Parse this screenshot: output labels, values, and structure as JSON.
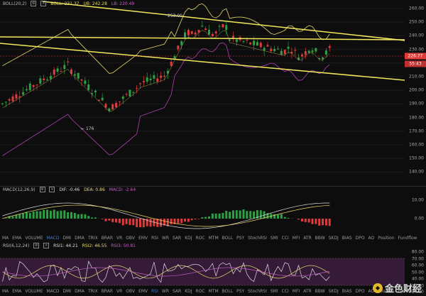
{
  "main": {
    "legend": {
      "boll_name": "BOLL(20,2)",
      "boll_label": "BOLL: 231.37",
      "ub_label": "UB: 242.28",
      "lb_label": "LB: 220.49"
    },
    "ticks": [
      "260.00",
      "250.00",
      "240.00",
      "230.00",
      "220.00",
      "210.00",
      "200.00",
      "190.00",
      "180.00",
      "170.00",
      "160.00",
      "150.00",
      "140.00"
    ],
    "price_box": "226.77",
    "timer_box": "55:43",
    "annotation_high": "253.00",
    "annotation_low": "176"
  },
  "macd": {
    "legend": {
      "name": "MACD(12,26,9)",
      "dif": "DIF: -0.46",
      "dea": "DEA: 0.86",
      "macd": "MACD: -2.64"
    },
    "ticks": [
      "10.00",
      "0.00"
    ]
  },
  "indicators_bar_1": [
    "MA",
    "EMA",
    "VOLUME",
    "MACD",
    "DMI",
    "DMA",
    "TRIX",
    "BRAR",
    "VR",
    "OBV",
    "EMV",
    "RSI",
    "WR",
    "SAR",
    "KDJ",
    "ROC",
    "MTM",
    "BOLL",
    "PSY",
    "StochRSI",
    "SMI",
    "CCI",
    "MFI",
    "ATR",
    "BBW",
    "SKDJ",
    "BIAS",
    "DPO",
    "AO",
    "Position",
    "Fundflow"
  ],
  "active_1": "MACD",
  "rsi": {
    "legend": {
      "name": "RSI(6,12,24)",
      "rsi1": "RSI1: 44.21",
      "rsi2": "RSI2: 46.55",
      "rsi3": "RSI3: 50.81"
    },
    "ticks": [
      "80.00",
      "70.00",
      "60.00",
      "50.00",
      "40.00",
      "30.00"
    ]
  },
  "indicators_bar_2": [
    "MA",
    "EMA",
    "VOLUME",
    "MACD",
    "DMI",
    "DMA",
    "TRIX",
    "BRAR",
    "VR",
    "OBV",
    "EMV",
    "RSI",
    "WR",
    "SAR",
    "KDJ",
    "ROC",
    "MTM",
    "BOLL",
    "PSY",
    "StochRSI",
    "SMI",
    "CCI",
    "MFI",
    "ATR",
    "BBW",
    "SKDJ",
    "BIAS",
    "DPO",
    "AO",
    "Position",
    "Fundflow"
  ],
  "active_2": "RSI",
  "last_tick": "20.00",
  "watermark": "金色财经",
  "colors": {
    "up": "#2ea043",
    "down": "#e03b3b",
    "boll_upper": "#e8d96b",
    "boll_lower": "#b040b0",
    "trend": "#f2e85c",
    "rsi_band": "#3a1d3d"
  }
}
